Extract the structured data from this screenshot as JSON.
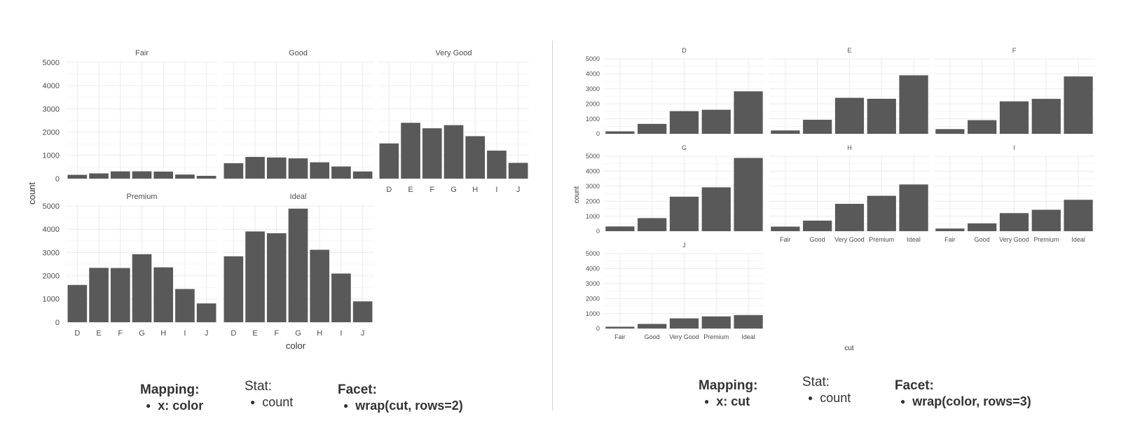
{
  "colors": {
    "bar": "#595959",
    "grid": "#ebebeb",
    "text": "#4d4d4d",
    "divider": "#cfcfcf"
  },
  "chart_data": [
    {
      "type": "bar",
      "facet_by": "cut",
      "xlabel": "color",
      "ylabel": "count",
      "ylim": [
        0,
        5000
      ],
      "yticks": [
        0,
        1000,
        2000,
        3000,
        4000,
        5000
      ],
      "categories": [
        "D",
        "E",
        "F",
        "G",
        "H",
        "I",
        "J"
      ],
      "panels": [
        {
          "name": "Fair",
          "values": [
            163,
            224,
            312,
            314,
            303,
            175,
            119
          ]
        },
        {
          "name": "Good",
          "values": [
            662,
            933,
            909,
            871,
            702,
            522,
            307
          ]
        },
        {
          "name": "Very Good",
          "values": [
            1513,
            2400,
            2164,
            2299,
            1824,
            1204,
            678
          ]
        },
        {
          "name": "Premium",
          "values": [
            1603,
            2337,
            2331,
            2924,
            2360,
            1428,
            808
          ]
        },
        {
          "name": "Ideal",
          "values": [
            2834,
            3903,
            3826,
            4884,
            3115,
            2093,
            896
          ]
        }
      ]
    },
    {
      "type": "bar",
      "facet_by": "color",
      "xlabel": "cut",
      "ylabel": "count",
      "ylim": [
        0,
        5000
      ],
      "yticks": [
        0,
        1000,
        2000,
        3000,
        4000,
        5000
      ],
      "categories": [
        "Fair",
        "Good",
        "Very Good",
        "Premium",
        "Ideal"
      ],
      "panels": [
        {
          "name": "D",
          "values": [
            163,
            662,
            1513,
            1603,
            2834
          ]
        },
        {
          "name": "E",
          "values": [
            224,
            933,
            2400,
            2337,
            3903
          ]
        },
        {
          "name": "F",
          "values": [
            312,
            909,
            2164,
            2331,
            3826
          ]
        },
        {
          "name": "G",
          "values": [
            314,
            871,
            2299,
            2924,
            4884
          ]
        },
        {
          "name": "H",
          "values": [
            303,
            702,
            1824,
            2360,
            3115
          ]
        },
        {
          "name": "I",
          "values": [
            175,
            522,
            1204,
            1428,
            2093
          ]
        },
        {
          "name": "J",
          "values": [
            119,
            307,
            678,
            808,
            896
          ]
        }
      ]
    }
  ],
  "captions": [
    {
      "mapping": {
        "title": "Mapping:",
        "item": "x: color"
      },
      "stat": {
        "title": "Stat:",
        "item": "count"
      },
      "facet": {
        "title": "Facet:",
        "item": "wrap(cut, rows=2)"
      }
    },
    {
      "mapping": {
        "title": "Mapping:",
        "item": "x: cut"
      },
      "stat": {
        "title": "Stat:",
        "item": "count"
      },
      "facet": {
        "title": "Facet:",
        "item": "wrap(color, rows=3)"
      }
    }
  ]
}
